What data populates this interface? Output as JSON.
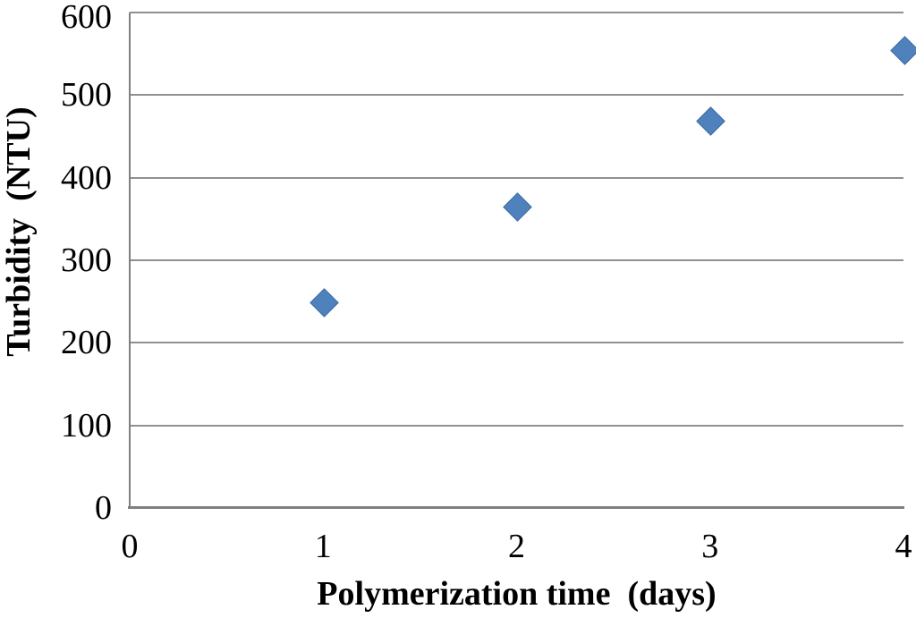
{
  "chart_data": {
    "type": "scatter",
    "title": "",
    "xlabel": "Polymerization time  (days)",
    "ylabel": "Turbidity  (NTU)",
    "x": [
      1,
      2,
      3,
      4
    ],
    "y": [
      250,
      365,
      470,
      555
    ],
    "x_ticks": [
      0,
      1,
      2,
      3,
      4
    ],
    "y_ticks": [
      0,
      100,
      200,
      300,
      400,
      500,
      600
    ],
    "xlim": [
      0,
      4
    ],
    "ylim": [
      0,
      600
    ],
    "grid": "horizontal-only",
    "legend": "none",
    "marker": "diamond",
    "marker_color": "#4F81BD",
    "marker_border_color": "#3C6CA5",
    "gridline_color": "#909090",
    "axis_color": "#7F7F7F",
    "text_color": "#000000",
    "background_color": "#FFFFFF"
  }
}
